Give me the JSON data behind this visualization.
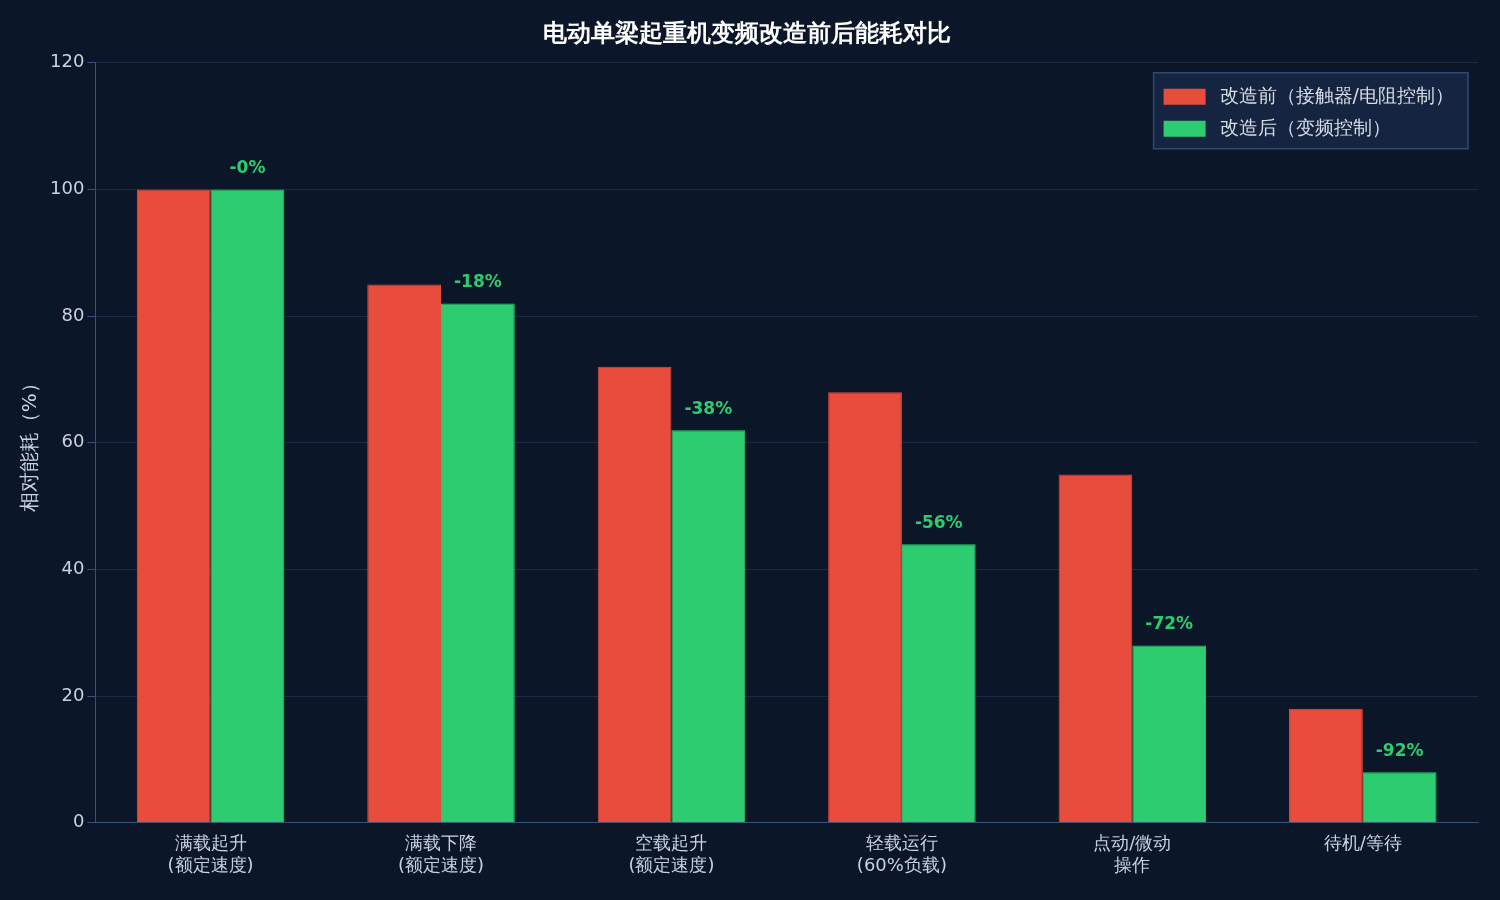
{
  "chart_data": {
    "type": "bar",
    "title": "电动单梁起重机变频改造前后能耗对比",
    "ylabel": "相对能耗（%）",
    "categories": [
      "满载起升(额定速度)",
      "满载下降(额定速度)",
      "空载起升(额定速度)",
      "轻载运行(60%负载)",
      "点动/微动操作",
      "待机/等待"
    ],
    "series": [
      {
        "name": "改造前（接触器/电阻控制）",
        "color": "#e74c3c",
        "values": [
          100,
          85,
          72,
          68,
          55,
          18
        ]
      },
      {
        "name": "改造后（变频控制）",
        "color": "#2ecc71",
        "values": [
          100,
          82,
          62,
          44,
          28,
          8
        ]
      }
    ],
    "annotations": [
      {
        "text": "-0%",
        "x": "满载起升(额定速度)",
        "y": 100
      },
      {
        "text": "-18%",
        "x": "满载下降(额定速度)",
        "y": 82
      },
      {
        "text": "-38%",
        "x": "空载起升(额定速度)",
        "y": 62
      },
      {
        "text": "-56%",
        "x": "轻载运行(60%负载)",
        "y": 44
      },
      {
        "text": "-72%",
        "x": "点动/微动操作",
        "y": 28
      },
      {
        "text": "-92%",
        "x": "待机/等待",
        "y": 8
      }
    ],
    "ylim": [
      0,
      120
    ],
    "yticks": [
      0,
      20,
      40,
      60,
      80,
      100,
      120
    ],
    "grid": "y",
    "legend": "top right"
  }
}
